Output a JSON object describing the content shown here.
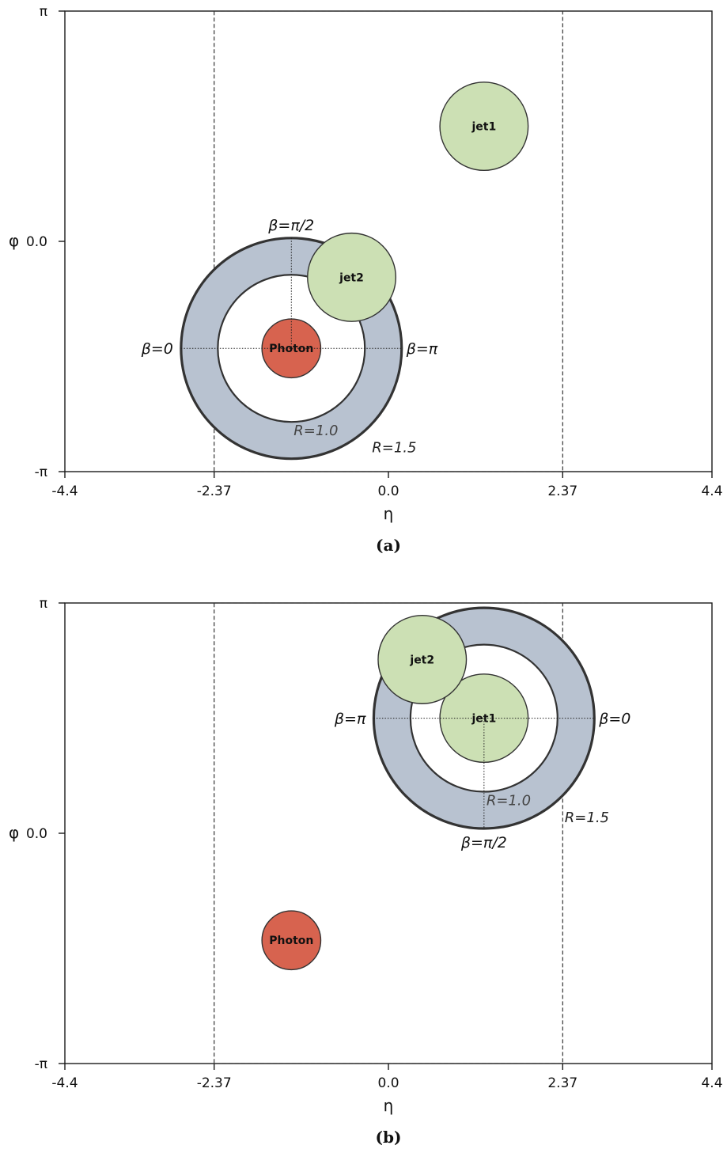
{
  "panels": [
    {
      "caption": "(a)",
      "axes": {
        "x_label": "η",
        "y_label": "φ",
        "x_ticks": [
          "-4.4",
          "-2.37",
          "0.0",
          "2.37",
          "4.4"
        ],
        "y_ticks": [
          "π",
          "0.0",
          "-π"
        ]
      },
      "acceptance": {
        "eta_min": -2.37,
        "eta_max": 2.37
      },
      "objects": [
        {
          "id": "jet1",
          "label": "jet1",
          "kind": "jet",
          "eta": 1.3,
          "phi": 1.57,
          "r": 0.6
        },
        {
          "id": "jet2",
          "label": "jet2",
          "kind": "jet",
          "eta": -0.5,
          "phi": -0.49,
          "r": 0.6
        },
        {
          "id": "photon",
          "label": "Photon",
          "kind": "photon",
          "eta": -1.32,
          "phi": -1.46,
          "r": 0.4
        }
      ],
      "rings": {
        "center_eta": -1.32,
        "center_phi": -1.46,
        "inner_label": "R=1.0",
        "outer_label": "R=1.5",
        "beta_left": "β=0",
        "beta_right": "β=π",
        "beta_top": "β=π/2",
        "beta_bottom": ""
      }
    },
    {
      "caption": "(b)",
      "axes": {
        "x_label": "η",
        "y_label": "φ",
        "x_ticks": [
          "-4.4",
          "-2.37",
          "0.0",
          "2.37",
          "4.4"
        ],
        "y_ticks": [
          "π",
          "0.0",
          "-π"
        ]
      },
      "acceptance": {
        "eta_min": -2.37,
        "eta_max": 2.37
      },
      "objects": [
        {
          "id": "jet1",
          "label": "jet1",
          "kind": "jet",
          "eta": 1.3,
          "phi": 1.57,
          "r": 0.6
        },
        {
          "id": "jet2",
          "label": "jet2",
          "kind": "jet",
          "eta": 0.46,
          "phi": 2.37,
          "r": 0.6
        },
        {
          "id": "photon",
          "label": "Photon",
          "kind": "photon",
          "eta": -1.32,
          "phi": -1.46,
          "r": 0.4
        }
      ],
      "rings": {
        "center_eta": 1.3,
        "center_phi": 1.57,
        "inner_label": "R=1.0",
        "outer_label": "R=1.5",
        "beta_left": "β=π",
        "beta_right": "β=0",
        "beta_top": "",
        "beta_bottom": "β=π/2"
      }
    }
  ]
}
